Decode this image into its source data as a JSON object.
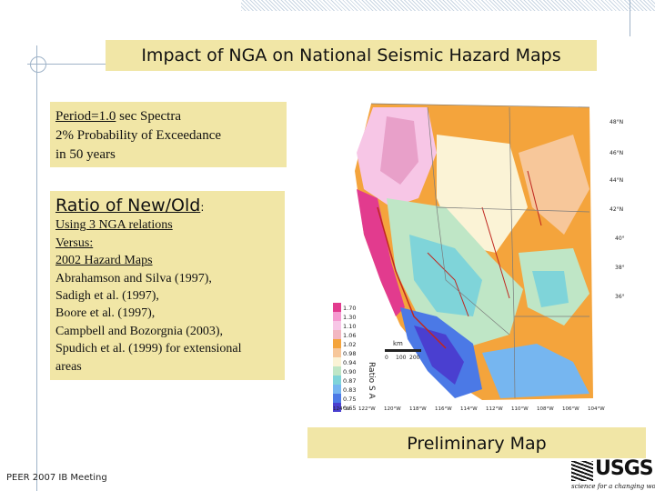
{
  "slide": {
    "title": "Impact of NGA on National Seismic Hazard Maps",
    "spectra": {
      "line1_underlined": "Period=1.0",
      "line1_rest": " sec Spectra",
      "line2": "2% Probability of Exceedance",
      "line3": "in 50 years"
    },
    "ratio": {
      "heading": "Ratio of New/Old",
      "colon": ":",
      "lines": [
        "Using 3 NGA relations",
        "Versus:",
        "2002 Hazard Maps",
        "Abrahamson and Silva (1997),",
        "Sadigh et al. (1997),",
        "Boore et al. (1997),",
        "Campbell and Bozorgnia (2003),",
        "Spudich et al. (1999) for extensional",
        "areas"
      ]
    },
    "preliminary": "Preliminary Map",
    "footer": "PEER 2007 IB Meeting",
    "logo": {
      "name": "USGS",
      "tagline": "science for a changing world"
    }
  },
  "map": {
    "legend_values": [
      "1.70",
      "1.30",
      "1.10",
      "1.06",
      "1.02",
      "0.98",
      "0.94",
      "0.90",
      "0.87",
      "0.83",
      "0.75",
      "0.65"
    ],
    "legend_colors": [
      "#e23b8e",
      "#f59ad0",
      "#f7c6e6",
      "#f2b7c1",
      "#f4a43c",
      "#f7c79a",
      "#fbf3d6",
      "#bfe6c6",
      "#7fd4d9",
      "#76b6f0",
      "#4b79e6",
      "#4a3fd0"
    ],
    "ratio_vertical_label": "Ratio S A",
    "scale_unit": "km",
    "scale_ticks": [
      "0",
      "100",
      "200"
    ],
    "lat_labels": [
      "48°N",
      "46°N",
      "44°N",
      "42°N",
      "40°",
      "38°",
      "36°"
    ],
    "lon_labels": [
      "124°W",
      "122°W",
      "120°W",
      "118°W",
      "116°W",
      "114°W",
      "112°W",
      "110°W",
      "108°W",
      "106°W",
      "104°W"
    ]
  },
  "colors": {
    "accent_box": "#f1e6a6",
    "guide_line": "#9fb3c8"
  }
}
